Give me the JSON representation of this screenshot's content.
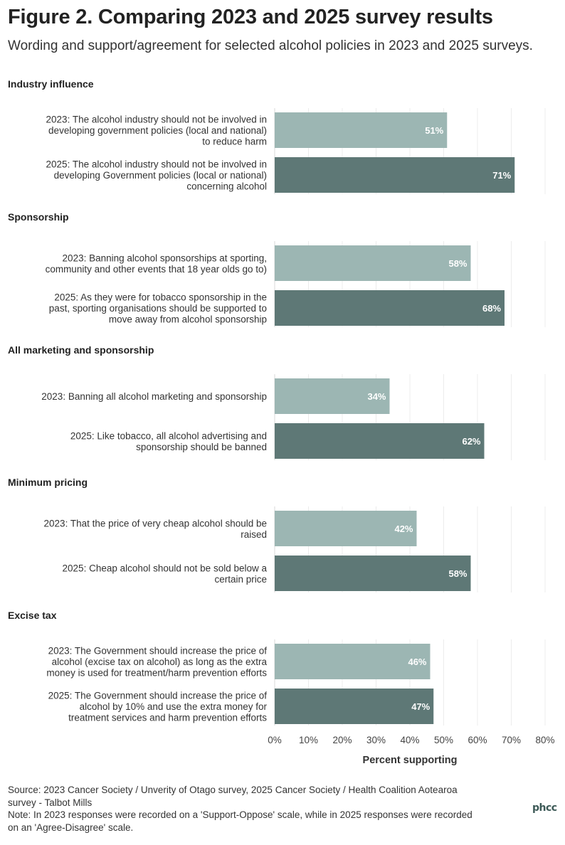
{
  "header": {
    "title": "Figure 2. Comparing 2023 and 2025 survey results",
    "subtitle": "Wording and support/agreement for selected alcohol policies in 2023 and 2025 surveys."
  },
  "colors": {
    "y2023": "#9cb6b3",
    "y2025": "#5e7876",
    "grid": "#ececec"
  },
  "chart_data": {
    "type": "bar",
    "orientation": "horizontal",
    "xlabel": "Percent supporting",
    "xlim": [
      0,
      80
    ],
    "x_ticks": [
      "0%",
      "10%",
      "20%",
      "30%",
      "40%",
      "50%",
      "60%",
      "70%",
      "80%"
    ],
    "grid": true,
    "groups": [
      {
        "name": "Industry influence",
        "bars": [
          {
            "year": "2023",
            "label": [
              "2023: The alcohol industry should not be involved in",
              "developing government policies (local and national)",
              "to reduce harm"
            ],
            "value": 51,
            "value_label": "51%"
          },
          {
            "year": "2025",
            "label": [
              "2025: The alcohol industry should not be involved in",
              "developing Government policies (local or national)",
              "concerning alcohol"
            ],
            "value": 71,
            "value_label": "71%"
          }
        ]
      },
      {
        "name": "Sponsorship",
        "bars": [
          {
            "year": "2023",
            "label": [
              "2023: Banning alcohol sponsorships at sporting,",
              "community and other events that 18 year olds go to)"
            ],
            "value": 58,
            "value_label": "58%"
          },
          {
            "year": "2025",
            "label": [
              "2025: As they were for tobacco sponsorship in the",
              "past, sporting organisations should be supported to",
              "move away from alcohol sponsorship"
            ],
            "value": 68,
            "value_label": "68%"
          }
        ]
      },
      {
        "name": "All marketing and sponsorship",
        "bars": [
          {
            "year": "2023",
            "label": [
              "2023: Banning all alcohol marketing and sponsorship"
            ],
            "value": 34,
            "value_label": "34%"
          },
          {
            "year": "2025",
            "label": [
              "2025: Like tobacco, all alcohol advertising and",
              "sponsorship should be banned"
            ],
            "value": 62,
            "value_label": "62%"
          }
        ]
      },
      {
        "name": "Minimum pricing",
        "bars": [
          {
            "year": "2023",
            "label": [
              "2023: That the price of very cheap alcohol should be",
              "raised"
            ],
            "value": 42,
            "value_label": "42%"
          },
          {
            "year": "2025",
            "label": [
              "2025: Cheap alcohol should not be sold below a",
              "certain price"
            ],
            "value": 58,
            "value_label": "58%"
          }
        ]
      },
      {
        "name": "Excise tax",
        "bars": [
          {
            "year": "2023",
            "label": [
              "2023: The Government should increase the price of",
              "alcohol (excise tax on alcohol) as long as the extra",
              "money is used for treatment/harm prevention efforts"
            ],
            "value": 46,
            "value_label": "46%"
          },
          {
            "year": "2025",
            "label": [
              "2025: The Government should increase the price of",
              "alcohol by 10% and use the extra money for",
              "treatment services and harm prevention efforts"
            ],
            "value": 47,
            "value_label": "47%"
          }
        ]
      }
    ]
  },
  "footer": {
    "source_line1": "Source: 2023 Cancer Society / Unverity of Otago survey, 2025 Cancer Society / Health Coalition Aotearoa",
    "source_line2": "survey - Talbot Mills",
    "note_line1": "Note: In 2023 responses were recorded on a 'Support-Oppose' scale, while in 2025 responses were recorded",
    "note_line2": "on an 'Agree-Disagree' scale.",
    "logo_text": "phcc"
  }
}
